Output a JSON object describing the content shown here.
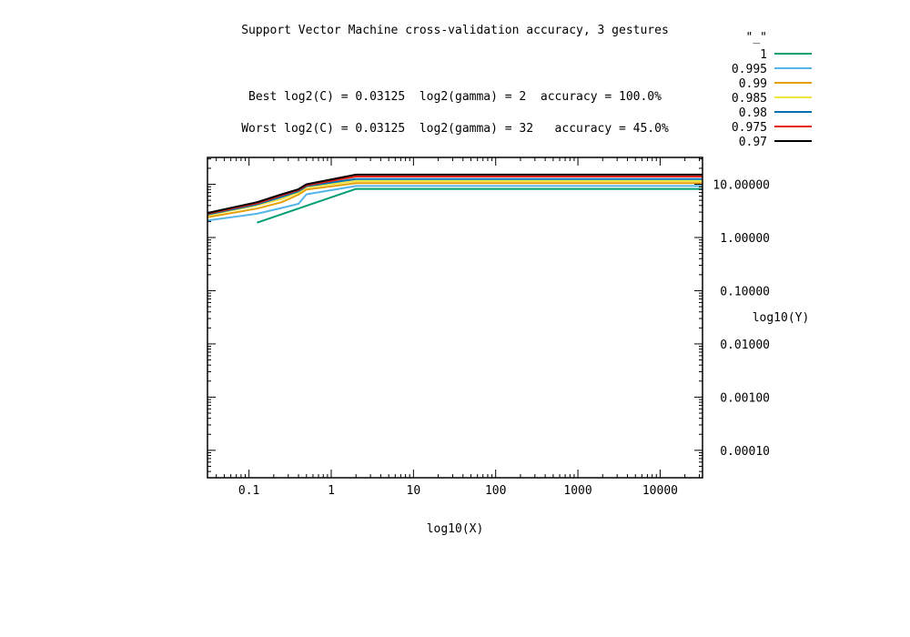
{
  "chart_data": {
    "type": "line",
    "title": "Support Vector Machine cross-validation accuracy, 3 gestures",
    "annotations": [
      "Best log2(C) = 0.03125  log2(gamma) = 2  accuracy = 100.0%",
      "Worst log2(C) = 0.03125  log2(gamma) = 32   accuracy = 45.0%"
    ],
    "xlabel": "log10(X)",
    "ylabel": "log10(Y)",
    "x_scale": "log",
    "y_scale": "log",
    "xlim": [
      0.03125,
      32768
    ],
    "ylim": [
      3.05e-05,
      32
    ],
    "x_ticks": [
      0.1,
      1,
      10,
      100,
      1000,
      10000
    ],
    "x_tick_labels": [
      "0.1",
      "1",
      "10",
      "100",
      "1000",
      "10000"
    ],
    "y_ticks": [
      10,
      1,
      0.1,
      0.01,
      0.001,
      0.0001
    ],
    "y_tick_labels": [
      "10.00000",
      "1.00000",
      "0.10000",
      "0.01000",
      "0.00100",
      "0.00010"
    ],
    "grid": false,
    "legend_title": "\"_\"",
    "legend_position": "top-right, outside plot",
    "series": [
      {
        "name": "1",
        "color": "#009e73",
        "x": [
          0.125,
          2,
          32768
        ],
        "y": [
          1.9,
          8.2,
          8.2
        ]
      },
      {
        "name": "0.995",
        "color": "#56b4e9",
        "x": [
          0.03125,
          0.125,
          0.25,
          0.4,
          0.5,
          2,
          32768
        ],
        "y": [
          2.1,
          2.8,
          3.6,
          4.3,
          6.5,
          9.3,
          9.3
        ]
      },
      {
        "name": "0.99",
        "color": "#e69f00",
        "x": [
          0.03125,
          0.125,
          0.25,
          0.4,
          0.5,
          2,
          32768
        ],
        "y": [
          2.4,
          3.5,
          4.6,
          6.4,
          8.0,
          10.5,
          10.5
        ]
      },
      {
        "name": "0.985",
        "color": "#f0e442",
        "x": [
          0.03125,
          0.125,
          0.25,
          0.4,
          0.5,
          2,
          32768
        ],
        "y": [
          2.6,
          4.0,
          5.3,
          7.0,
          8.8,
          11.5,
          11.5
        ]
      },
      {
        "name": "0.98",
        "color": "#0072b2",
        "x": [
          0.03125,
          0.125,
          0.25,
          0.4,
          0.5,
          2,
          32768
        ],
        "y": [
          2.7,
          4.2,
          5.8,
          7.4,
          9.2,
          12.6,
          12.6
        ]
      },
      {
        "name": "0.975",
        "color": "#e51e10",
        "x": [
          0.03125,
          0.125,
          0.25,
          0.4,
          0.5,
          2,
          32768
        ],
        "y": [
          2.8,
          4.4,
          6.2,
          7.8,
          9.6,
          14.0,
          14.0
        ]
      },
      {
        "name": "0.97",
        "color": "#000000",
        "x": [
          0.03125,
          0.125,
          0.25,
          0.4,
          0.5,
          2,
          32768
        ],
        "y": [
          2.9,
          4.6,
          6.5,
          8.1,
          10.0,
          15.2,
          15.2
        ]
      }
    ]
  }
}
